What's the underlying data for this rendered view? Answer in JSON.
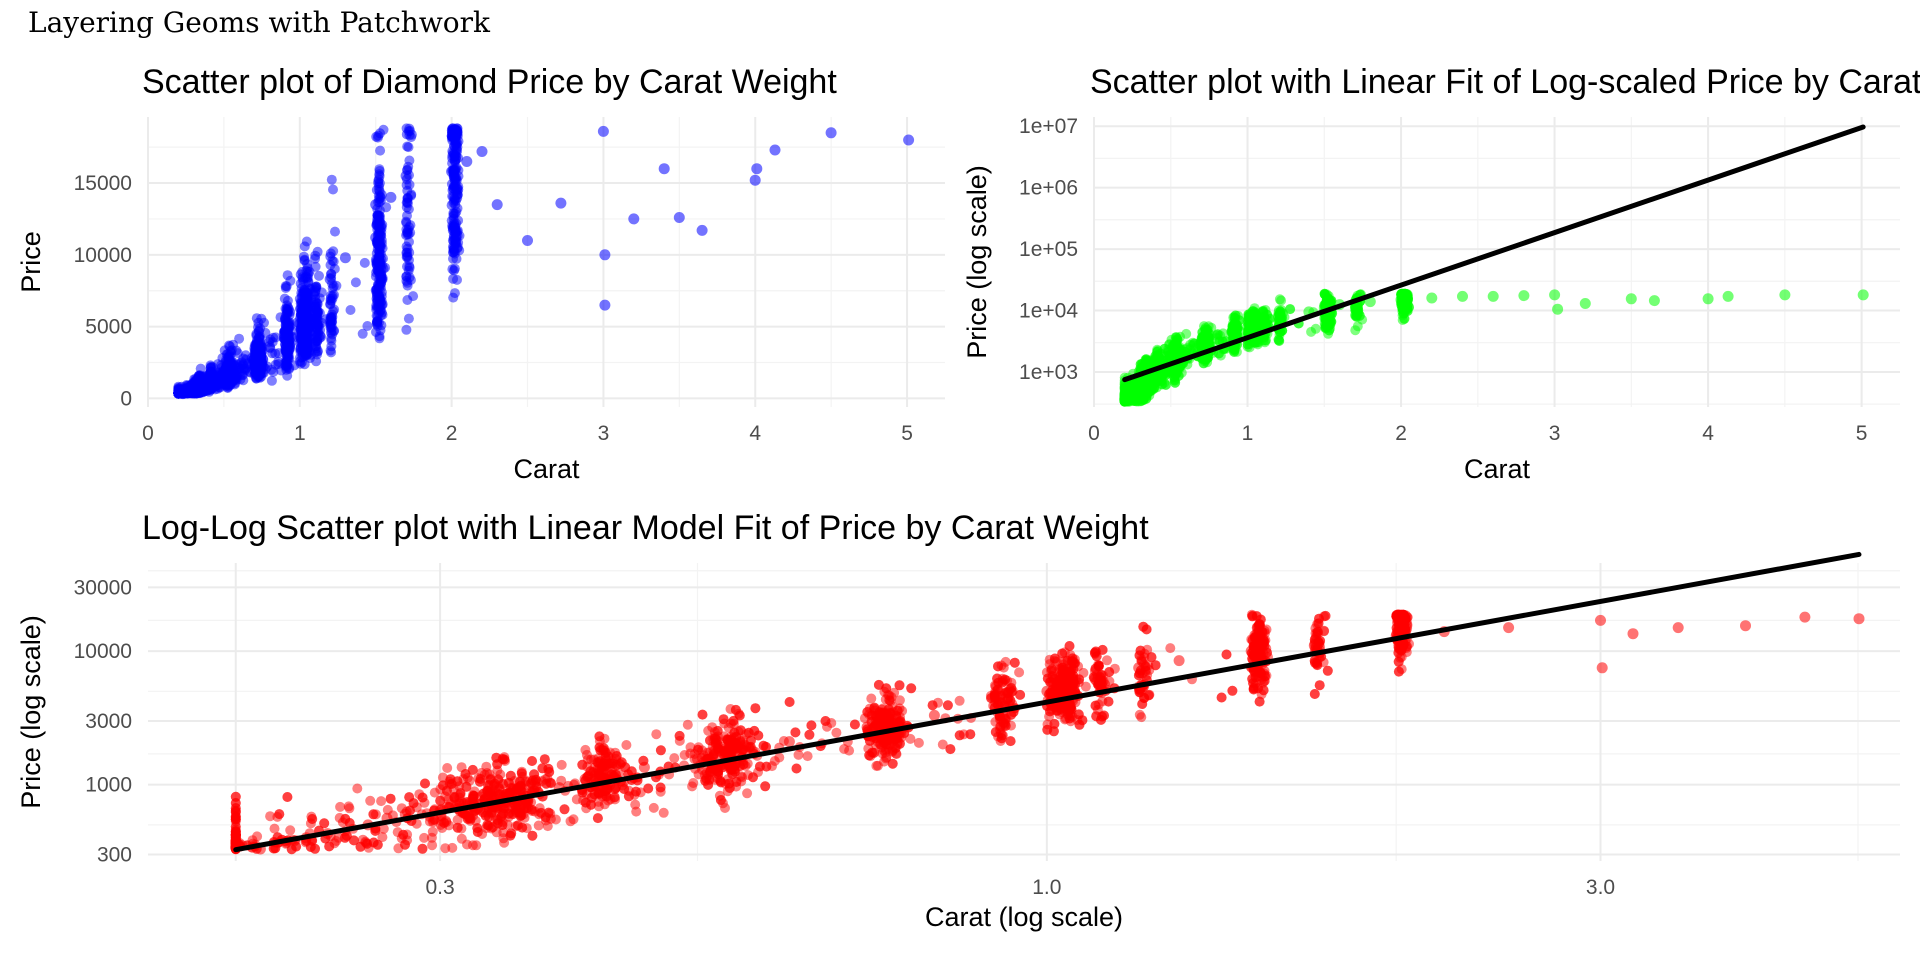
{
  "page_title": "Layering Geoms with Patchwork",
  "chart_data": [
    {
      "id": "p1",
      "type": "scatter",
      "title": "Scatter plot of Diamond Price by Carat Weight",
      "xlabel": "Carat",
      "ylabel": "Price",
      "x_scale": "linear",
      "y_scale": "linear",
      "xlim": [
        0,
        5.25
      ],
      "ylim": [
        -600,
        19600
      ],
      "x_ticks": [
        0,
        1,
        2,
        3,
        4,
        5
      ],
      "x_tick_labels": [
        "0",
        "1",
        "2",
        "3",
        "4",
        "5"
      ],
      "y_ticks": [
        0,
        5000,
        10000,
        15000
      ],
      "y_tick_labels": [
        "0",
        "5000",
        "10000",
        "15000"
      ],
      "point_color": "#0000ff",
      "grid": true,
      "points": [
        [
          0.23,
          330
        ],
        [
          0.24,
          370
        ],
        [
          0.26,
          410
        ],
        [
          0.28,
          470
        ],
        [
          0.3,
          520
        ],
        [
          0.32,
          580
        ],
        [
          0.36,
          700
        ],
        [
          0.4,
          920
        ],
        [
          0.45,
          1150
        ],
        [
          0.5,
          1550
        ],
        [
          0.55,
          1800
        ],
        [
          0.6,
          2100
        ],
        [
          0.7,
          2700
        ],
        [
          0.72,
          3000
        ],
        [
          0.75,
          3300
        ],
        [
          0.8,
          3600
        ],
        [
          0.9,
          4200
        ],
        [
          0.92,
          3900
        ],
        [
          1.0,
          5200
        ],
        [
          1.01,
          5800
        ],
        [
          1.05,
          6800
        ],
        [
          1.1,
          7500
        ],
        [
          1.2,
          8300
        ],
        [
          1.3,
          9800
        ],
        [
          1.5,
          11200
        ],
        [
          1.5,
          13500
        ],
        [
          1.6,
          14000
        ],
        [
          1.7,
          15500
        ],
        [
          2.0,
          15800
        ],
        [
          2.01,
          14500
        ],
        [
          2.1,
          16500
        ],
        [
          2.2,
          17200
        ],
        [
          2.3,
          13500
        ],
        [
          2.5,
          11000
        ],
        [
          2.72,
          13600
        ],
        [
          3.0,
          18600
        ],
        [
          3.01,
          10000
        ],
        [
          3.01,
          6500
        ],
        [
          3.2,
          12500
        ],
        [
          3.4,
          16000
        ],
        [
          3.5,
          12600
        ],
        [
          3.65,
          11700
        ],
        [
          4.0,
          15200
        ],
        [
          4.01,
          16000
        ],
        [
          4.13,
          17300
        ],
        [
          4.5,
          18500
        ],
        [
          5.01,
          18000
        ]
      ]
    },
    {
      "id": "p2",
      "type": "scatter",
      "title": "Scatter plot with Linear Fit of Log-scaled Price by Carat Weight",
      "xlabel": "Carat",
      "ylabel": "Price (log scale)",
      "x_scale": "linear",
      "y_scale": "log10",
      "xlim": [
        0,
        5.25
      ],
      "ylim_log10": [
        2.43,
        7.15
      ],
      "x_ticks": [
        0,
        1,
        2,
        3,
        4,
        5
      ],
      "x_tick_labels": [
        "0",
        "1",
        "2",
        "3",
        "4",
        "5"
      ],
      "y_ticks": [
        1000,
        10000,
        100000,
        1000000,
        10000000
      ],
      "y_tick_labels": [
        "1e+03",
        "1e+04",
        "1e+05",
        "1e+06",
        "1e+07"
      ],
      "point_color": "#00ff00",
      "grid": true,
      "fit_line": {
        "x": [
          0.2,
          5.01
        ],
        "y": [
          750,
          9700000
        ]
      },
      "points": [
        [
          0.2,
          360
        ],
        [
          0.23,
          380
        ],
        [
          0.25,
          450
        ],
        [
          0.3,
          700
        ],
        [
          0.32,
          800
        ],
        [
          0.38,
          1000
        ],
        [
          0.45,
          1300
        ],
        [
          0.55,
          1800
        ],
        [
          0.6,
          2300
        ],
        [
          0.7,
          2800
        ],
        [
          0.8,
          3500
        ],
        [
          0.9,
          4500
        ],
        [
          1.0,
          5400
        ],
        [
          1.05,
          7000
        ],
        [
          1.2,
          8000
        ],
        [
          1.4,
          9500
        ],
        [
          1.5,
          11000
        ],
        [
          1.6,
          12500
        ],
        [
          1.8,
          14000
        ],
        [
          2.0,
          15000
        ],
        [
          2.2,
          16000
        ],
        [
          2.4,
          17000
        ],
        [
          2.6,
          17000
        ],
        [
          2.8,
          17500
        ],
        [
          3.0,
          18000
        ],
        [
          3.02,
          10500
        ],
        [
          3.2,
          13000
        ],
        [
          3.5,
          15500
        ],
        [
          3.65,
          14500
        ],
        [
          4.0,
          15500
        ],
        [
          4.13,
          17000
        ],
        [
          4.5,
          18000
        ],
        [
          5.01,
          18000
        ]
      ]
    },
    {
      "id": "p3",
      "type": "scatter",
      "title": "Log-Log Scatter plot with Linear Model Fit of Price by Carat Weight",
      "xlabel": "Carat (log scale)",
      "ylabel": "Price (log scale)",
      "x_scale": "log10",
      "y_scale": "log10",
      "xlim_log10": [
        -0.7746,
        0.7352
      ],
      "ylim_log10": [
        2.4283,
        4.6601
      ],
      "x_ticks": [
        0.3,
        1.0,
        3.0
      ],
      "x_tick_labels": [
        "0.3",
        "1.0",
        "3.0"
      ],
      "y_ticks": [
        300,
        1000,
        3000,
        10000,
        30000
      ],
      "y_tick_labels": [
        "300",
        "1000",
        "3000",
        "10000",
        "30000"
      ],
      "point_color": "#ff0000",
      "grid": true,
      "fit_line": {
        "x": [
          0.2,
          5.01
        ],
        "y": [
          326,
          53000
        ]
      },
      "points": [
        [
          0.2,
          340
        ],
        [
          0.21,
          330
        ],
        [
          0.23,
          400
        ],
        [
          0.24,
          430
        ],
        [
          0.26,
          500
        ],
        [
          0.27,
          560
        ],
        [
          0.28,
          600
        ],
        [
          0.3,
          640
        ],
        [
          0.31,
          700
        ],
        [
          0.32,
          720
        ],
        [
          0.35,
          800
        ],
        [
          0.36,
          900
        ],
        [
          0.38,
          950
        ],
        [
          0.4,
          1100
        ],
        [
          0.42,
          1200
        ],
        [
          0.45,
          1350
        ],
        [
          0.5,
          1550
        ],
        [
          0.55,
          1800
        ],
        [
          0.6,
          2100
        ],
        [
          0.7,
          2700
        ],
        [
          0.8,
          3300
        ],
        [
          0.9,
          3900
        ],
        [
          1.0,
          5000
        ],
        [
          1.05,
          5500
        ],
        [
          1.1,
          6200
        ],
        [
          1.2,
          7500
        ],
        [
          1.3,
          8500
        ],
        [
          1.5,
          10000
        ],
        [
          1.7,
          11000
        ],
        [
          2.0,
          13000
        ],
        [
          2.2,
          14000
        ],
        [
          2.5,
          15000
        ],
        [
          3.0,
          17000
        ],
        [
          3.01,
          7500
        ],
        [
          3.2,
          13500
        ],
        [
          3.5,
          15000
        ],
        [
          4.0,
          15500
        ],
        [
          4.5,
          18000
        ],
        [
          5.01,
          17500
        ]
      ]
    }
  ]
}
